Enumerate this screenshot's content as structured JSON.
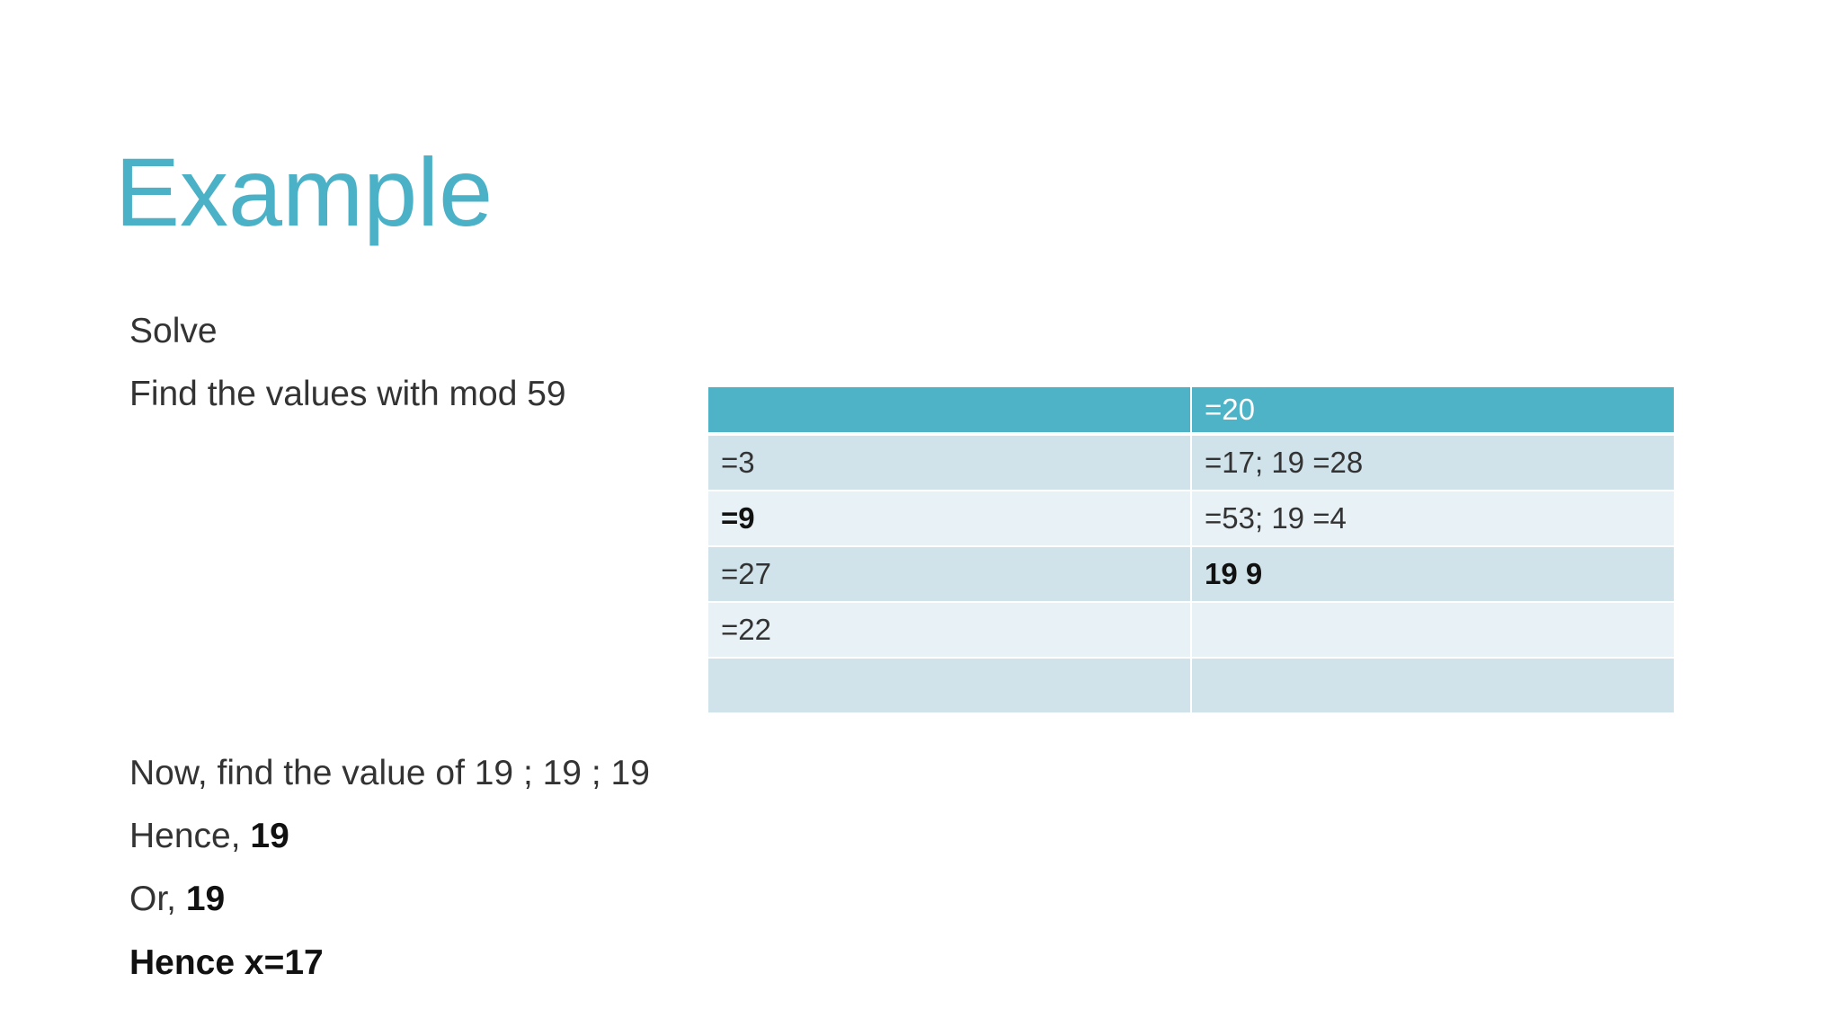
{
  "title": "Example",
  "intro": [
    "Solve",
    "Find the values with mod 59"
  ],
  "table": {
    "header": [
      null,
      "=20"
    ],
    "rows": [
      [
        "=3",
        "=17; 19 =28"
      ],
      [
        "=9",
        "=53; 19 =4"
      ],
      [
        "=27",
        "19 9"
      ],
      [
        "=22",
        null
      ],
      [
        null,
        null
      ]
    ]
  },
  "conclusion": {
    "line1": "Now, find the value of 19 ; 19 ; 19",
    "line2": [
      "Hence,",
      "19"
    ],
    "line3": [
      "Or,",
      "19"
    ],
    "line4": "Hence x=17"
  }
}
